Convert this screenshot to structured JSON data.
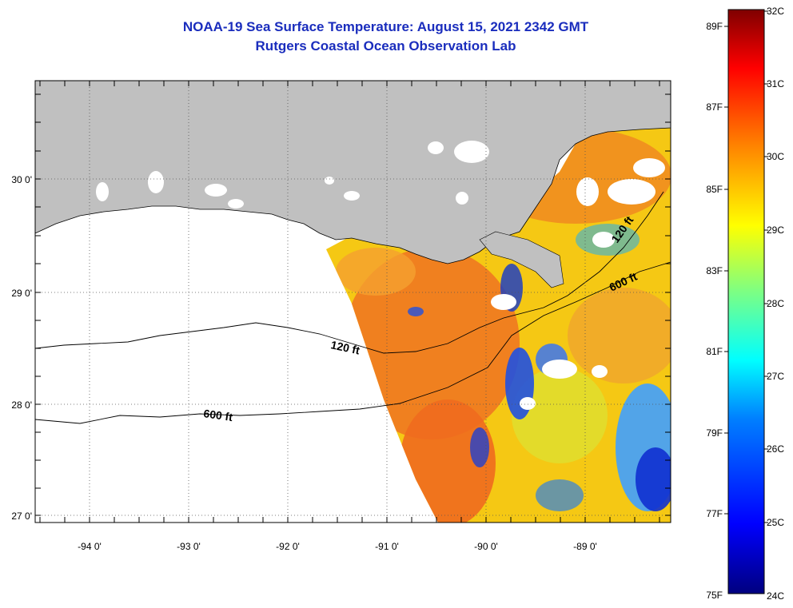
{
  "title": "NOAA-19 Sea Surface Temperature:  August 15, 2021 2342 GMT",
  "subtitle": "Rutgers Coastal Ocean Observation Lab",
  "lat_labels": [
    "30 0'",
    "29 0'",
    "28 0'",
    "27 0'"
  ],
  "lon_labels": [
    "-94 0'",
    "-93 0'",
    "-92 0'",
    "-91 0'",
    "-90 0'",
    "-89 0'"
  ],
  "contour_labels": [
    "120 ft",
    "600 ft",
    "120 ft",
    "600 ft"
  ],
  "colorbar": {
    "celsius": [
      "32C",
      "31C",
      "30C",
      "29C",
      "28C",
      "27C",
      "26C",
      "25C",
      "24C"
    ],
    "fahrenheit": [
      "89F",
      "87F",
      "85F",
      "83F",
      "81F",
      "79F",
      "77F",
      "75F"
    ],
    "colors": [
      "#00007f",
      "#0000ff",
      "#0080ff",
      "#00ffff",
      "#80ff80",
      "#ffff00",
      "#ff8000",
      "#ff0000",
      "#7f0000"
    ]
  },
  "colors": {
    "land": "#c0c0c0",
    "title": "#1a2dbd",
    "cloud": "#ffffff"
  }
}
